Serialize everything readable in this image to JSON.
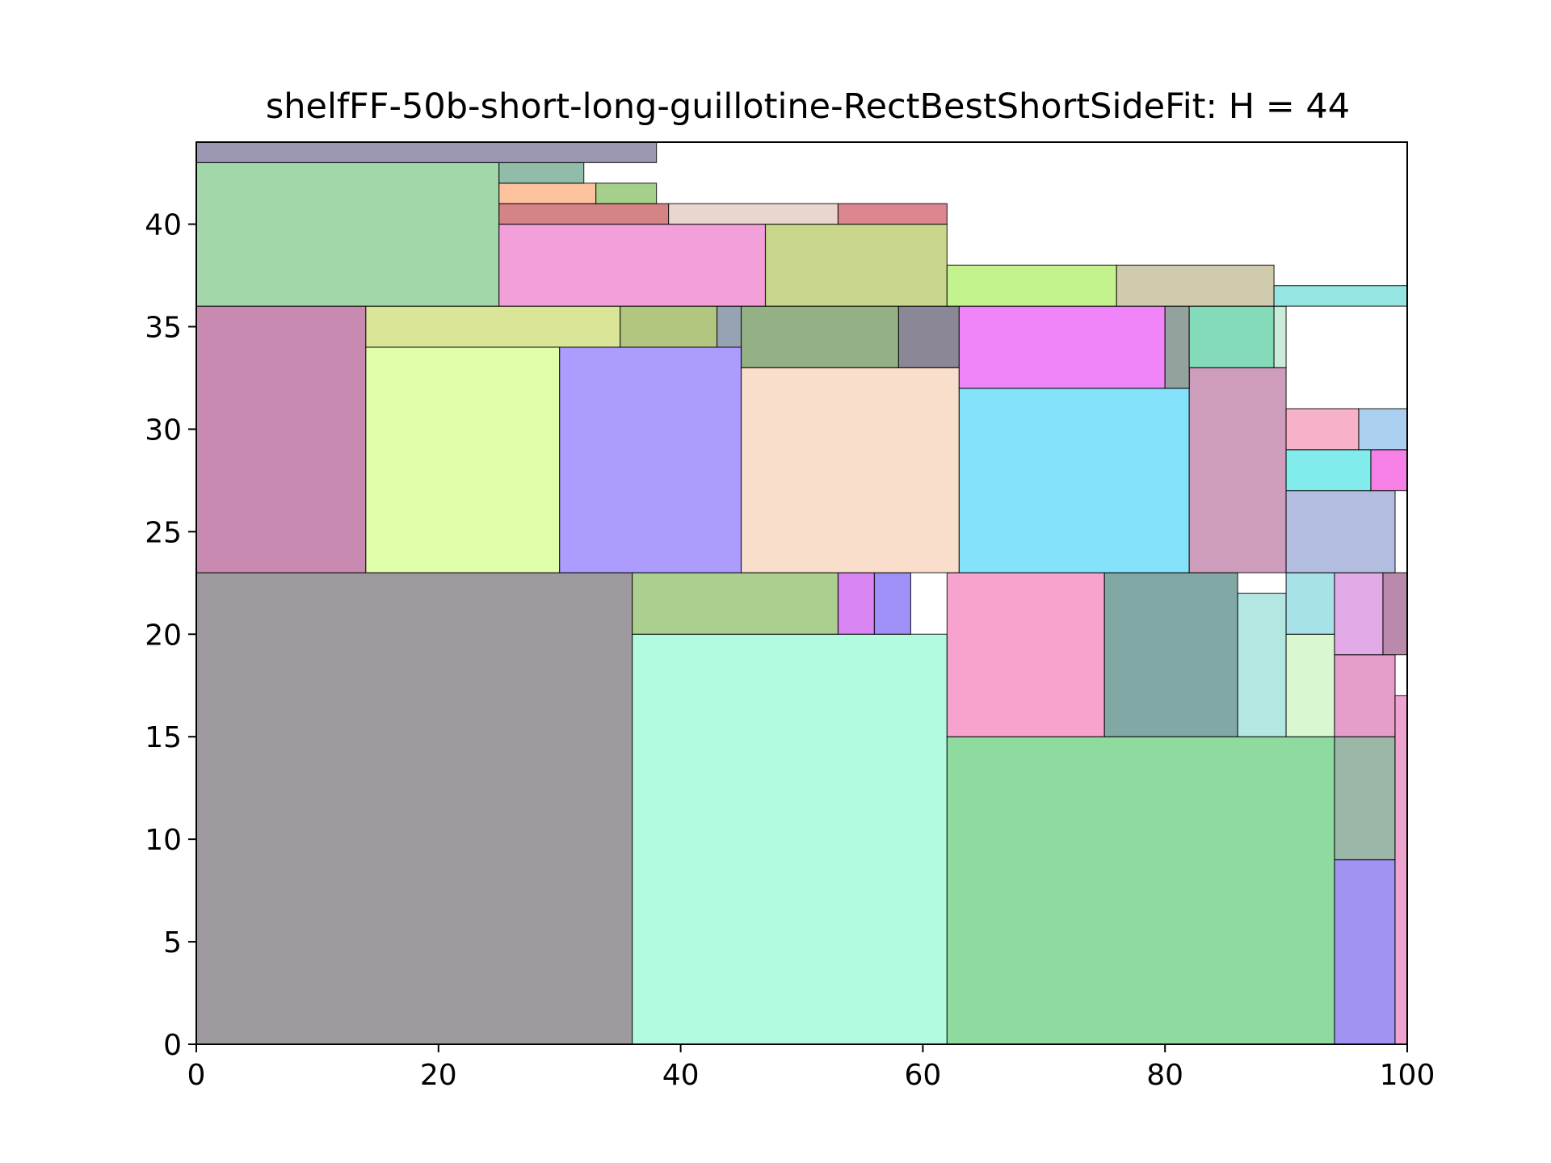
{
  "chart_data": {
    "type": "rectangle-packing",
    "title": "shelfFF-50b-short-long-guillotine-RectBestShortSideFit: H = 44",
    "xlabel": "",
    "ylabel": "",
    "xlim": [
      0,
      100
    ],
    "ylim": [
      0,
      44
    ],
    "x_ticks": [
      0,
      20,
      40,
      60,
      80,
      100
    ],
    "y_ticks": [
      0,
      5,
      10,
      15,
      20,
      25,
      30,
      35,
      40
    ],
    "grid": false,
    "rectangles": [
      {
        "x": 0,
        "y": 0,
        "w": 36,
        "h": 23,
        "color": "#9e999f"
      },
      {
        "x": 36,
        "y": 0,
        "w": 26,
        "h": 20,
        "color": "#b2fbde"
      },
      {
        "x": 36,
        "y": 20,
        "w": 17,
        "h": 3,
        "color": "#abcf8e"
      },
      {
        "x": 53,
        "y": 20,
        "w": 3,
        "h": 3,
        "color": "#d884f2"
      },
      {
        "x": 56,
        "y": 20,
        "w": 3,
        "h": 3,
        "color": "#9e90f6"
      },
      {
        "x": 62,
        "y": 0,
        "w": 32,
        "h": 15,
        "color": "#8fdb9f"
      },
      {
        "x": 62,
        "y": 15,
        "w": 13,
        "h": 8,
        "color": "#f7a3cd"
      },
      {
        "x": 75,
        "y": 15,
        "w": 11,
        "h": 8,
        "color": "#81a8a4"
      },
      {
        "x": 86,
        "y": 15,
        "w": 4,
        "h": 7,
        "color": "#b4e7e1"
      },
      {
        "x": 90,
        "y": 15,
        "w": 4,
        "h": 5,
        "color": "#d9f8d2"
      },
      {
        "x": 90,
        "y": 20,
        "w": 4,
        "h": 3,
        "color": "#a6e2e8"
      },
      {
        "x": 94,
        "y": 0,
        "w": 5,
        "h": 9,
        "color": "#a094f2"
      },
      {
        "x": 94,
        "y": 9,
        "w": 5,
        "h": 6,
        "color": "#9bb7a7"
      },
      {
        "x": 94,
        "y": 15,
        "w": 5,
        "h": 4,
        "color": "#e59dc9"
      },
      {
        "x": 94,
        "y": 19,
        "w": 4,
        "h": 4,
        "color": "#e3aae8"
      },
      {
        "x": 98,
        "y": 19,
        "w": 2,
        "h": 4,
        "color": "#b98aab"
      },
      {
        "x": 99,
        "y": 0,
        "w": 1,
        "h": 17,
        "color": "#eda4cf"
      },
      {
        "x": 0,
        "y": 23,
        "w": 14,
        "h": 13,
        "color": "#c98ab1"
      },
      {
        "x": 14,
        "y": 23,
        "w": 16,
        "h": 11,
        "color": "#e0fea9"
      },
      {
        "x": 30,
        "y": 23,
        "w": 15,
        "h": 11,
        "color": "#ab9cfd"
      },
      {
        "x": 45,
        "y": 23,
        "w": 18,
        "h": 10,
        "color": "#f9decb"
      },
      {
        "x": 63,
        "y": 23,
        "w": 19,
        "h": 9,
        "color": "#84e3fb"
      },
      {
        "x": 82,
        "y": 23,
        "w": 8,
        "h": 10,
        "color": "#cd9dbb"
      },
      {
        "x": 90,
        "y": 23,
        "w": 9,
        "h": 4,
        "color": "#b3bde0"
      },
      {
        "x": 90,
        "y": 27,
        "w": 7,
        "h": 2,
        "color": "#82ecec"
      },
      {
        "x": 97,
        "y": 27,
        "w": 3,
        "h": 2,
        "color": "#f780e6"
      },
      {
        "x": 90,
        "y": 29,
        "w": 6,
        "h": 2,
        "color": "#f7b1c9"
      },
      {
        "x": 96,
        "y": 29,
        "w": 4,
        "h": 2,
        "color": "#abd0ef"
      },
      {
        "x": 14,
        "y": 34,
        "w": 21,
        "h": 2,
        "color": "#dae597"
      },
      {
        "x": 35,
        "y": 34,
        "w": 8,
        "h": 2,
        "color": "#b2c680"
      },
      {
        "x": 43,
        "y": 34,
        "w": 2,
        "h": 2,
        "color": "#97a3b3"
      },
      {
        "x": 45,
        "y": 33,
        "w": 13,
        "h": 3,
        "color": "#93b185"
      },
      {
        "x": 58,
        "y": 33,
        "w": 5,
        "h": 3,
        "color": "#8b8796"
      },
      {
        "x": 63,
        "y": 32,
        "w": 17,
        "h": 4,
        "color": "#f085f9"
      },
      {
        "x": 80,
        "y": 32,
        "w": 2,
        "h": 4,
        "color": "#94a29d"
      },
      {
        "x": 82,
        "y": 33,
        "w": 7,
        "h": 3,
        "color": "#84dbb9"
      },
      {
        "x": 89,
        "y": 33,
        "w": 1,
        "h": 3,
        "color": "#c8ecd9"
      },
      {
        "x": 0,
        "y": 36,
        "w": 25,
        "h": 7,
        "color": "#a2d7a9"
      },
      {
        "x": 25,
        "y": 36,
        "w": 22,
        "h": 4,
        "color": "#f39fd9"
      },
      {
        "x": 47,
        "y": 36,
        "w": 15,
        "h": 4,
        "color": "#c8d78b"
      },
      {
        "x": 62,
        "y": 36,
        "w": 14,
        "h": 2,
        "color": "#c2f38f"
      },
      {
        "x": 76,
        "y": 36,
        "w": 13,
        "h": 2,
        "color": "#d0cbad"
      },
      {
        "x": 89,
        "y": 36,
        "w": 11,
        "h": 1,
        "color": "#95e6e3"
      },
      {
        "x": 25,
        "y": 40,
        "w": 14,
        "h": 1,
        "color": "#d48485"
      },
      {
        "x": 39,
        "y": 40,
        "w": 14,
        "h": 1,
        "color": "#e9d7cf"
      },
      {
        "x": 53,
        "y": 40,
        "w": 9,
        "h": 1,
        "color": "#dc8691"
      },
      {
        "x": 25,
        "y": 41,
        "w": 8,
        "h": 1,
        "color": "#fdc29e"
      },
      {
        "x": 33,
        "y": 41,
        "w": 5,
        "h": 1,
        "color": "#a5d08b"
      },
      {
        "x": 25,
        "y": 42,
        "w": 7,
        "h": 1,
        "color": "#90bca9"
      },
      {
        "x": 0,
        "y": 43,
        "w": 38,
        "h": 1,
        "color": "#9b97b3"
      }
    ]
  }
}
